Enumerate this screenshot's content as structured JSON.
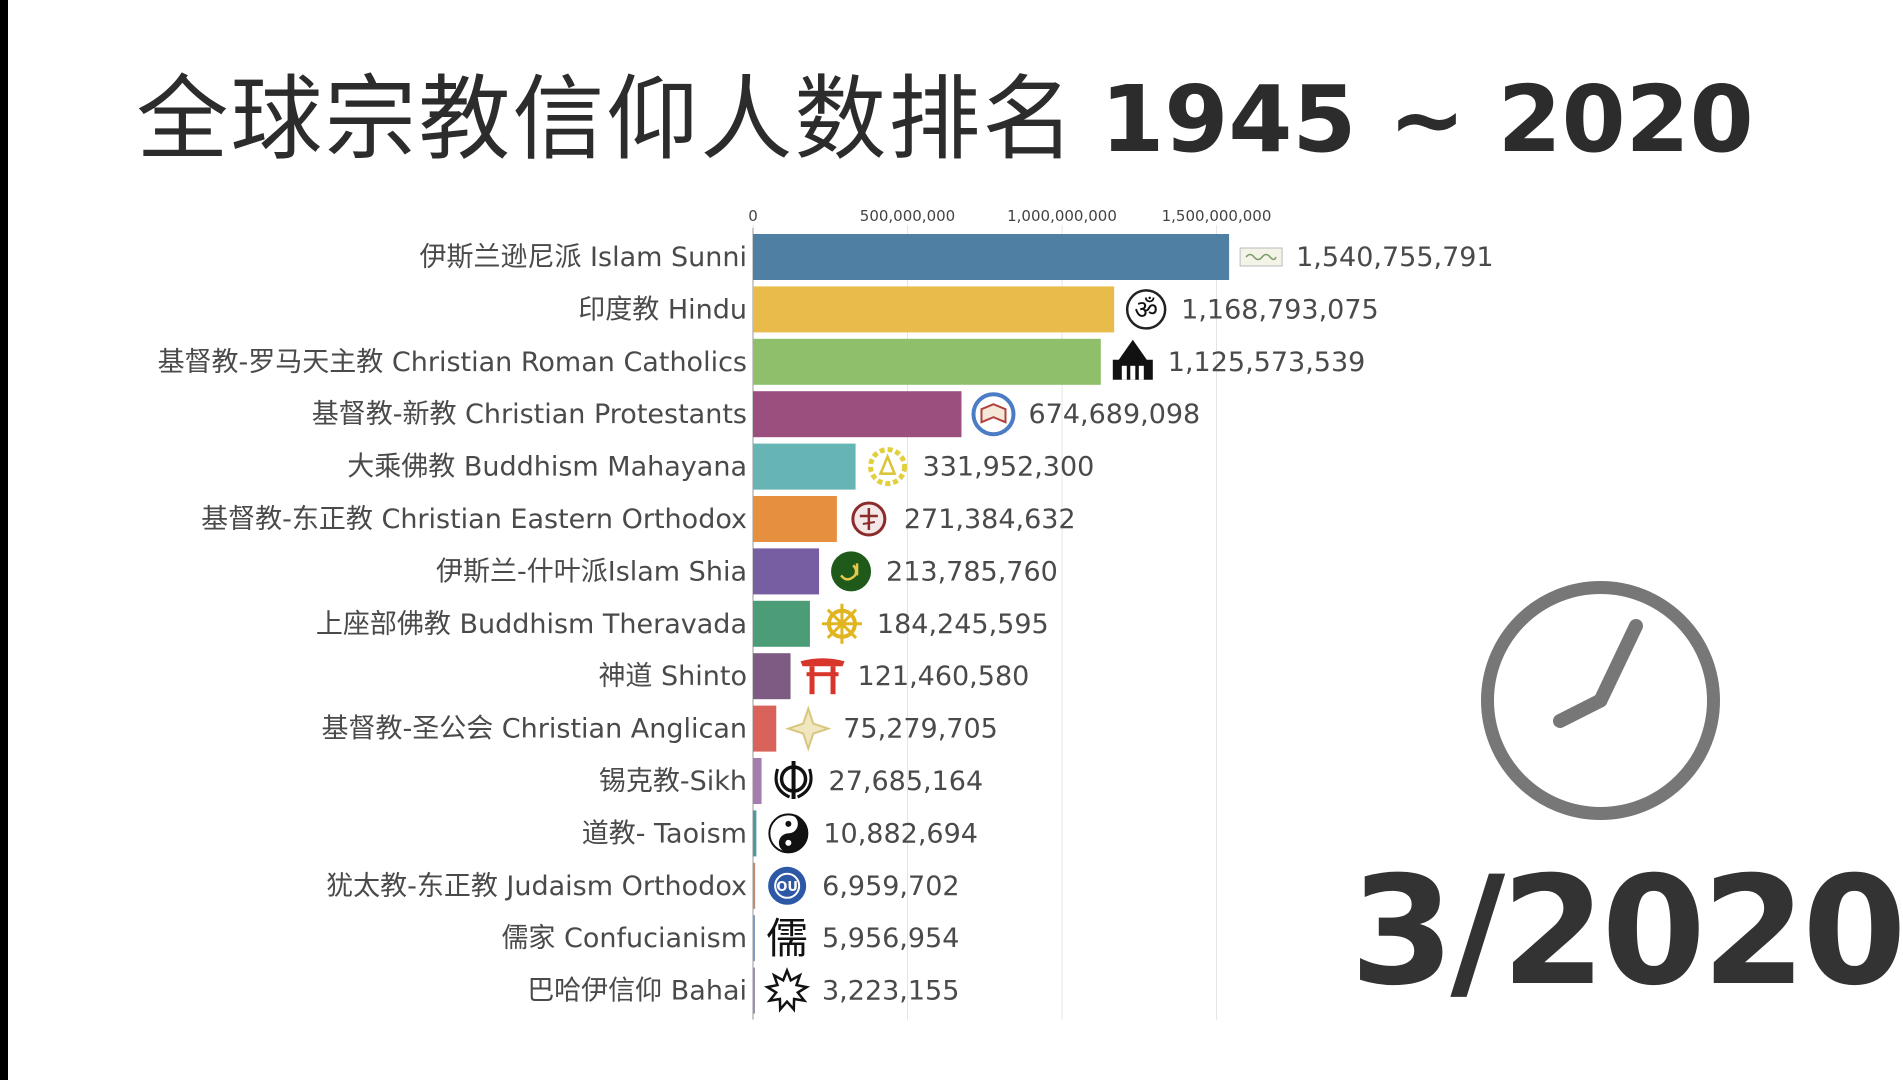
{
  "title": {
    "chinese": "全球宗教信仰人数排名",
    "years": "1945 ~ 2020"
  },
  "date_label": "3/2020",
  "chart_data": {
    "type": "bar",
    "orientation": "horizontal",
    "title": "全球宗教信仰人数排名 1945 ~ 2020",
    "xlim": [
      0,
      2000000000
    ],
    "x_ticks": [
      0,
      500000000,
      1000000000,
      1500000000
    ],
    "x_tick_labels": [
      "0",
      "500,000,000",
      "1,000,000,000",
      "1,500,000,000"
    ],
    "grid": true,
    "categories": [
      "伊斯兰逊尼派 Islam Sunni",
      "印度教 Hindu",
      "基督教-罗马天主教 Christian Roman Catholics",
      "基督教-新教 Christian Protestants",
      "大乘佛教 Buddhism Mahayana",
      "基督教-东正教 Christian Eastern Orthodox",
      "伊斯兰-什叶派Islam Shia",
      "上座部佛教 Buddhism Theravada",
      "神道 Shinto",
      "基督教-圣公会 Christian Anglican",
      "锡克教-Sikh",
      "道教- Taoism",
      "犹太教-东正教 Judaism Orthodox",
      "儒家 Confucianism",
      "巴哈伊信仰 Bahai"
    ],
    "values": [
      1540755791,
      1168793075,
      1125573539,
      674689098,
      331952300,
      271384632,
      213785760,
      184245595,
      121460580,
      75279705,
      27685164,
      10882694,
      6959702,
      5956954,
      3223155
    ],
    "value_labels": [
      "1,540,755,791",
      "1,168,793,075",
      "1,125,573,539",
      "674,689,098",
      "331,952,300",
      "271,384,632",
      "213,785,760",
      "184,245,595",
      "121,460,580",
      "75,279,705",
      "27,685,164",
      "10,882,694",
      "6,959,702",
      "5,956,954",
      "3,223,155"
    ],
    "colors": [
      "#4f7fa3",
      "#e8bb4b",
      "#8fbf6a",
      "#9b4f7f",
      "#66b4b3",
      "#e58f3f",
      "#775ea3",
      "#4d9c78",
      "#7d5b82",
      "#d9635a",
      "#a57cb0",
      "#4f9aa0",
      "#c28a73",
      "#7e9fc0",
      "#9c8fb0"
    ],
    "icons": [
      "islam-banner-icon",
      "om-icon",
      "church-icon",
      "protestant-bible-icon",
      "dharma-lotus-icon",
      "orthodox-cross-icon",
      "shia-ali-icon",
      "dharma-wheel-icon",
      "torii-icon",
      "anglican-cross-icon",
      "khanda-icon",
      "yin-yang-icon",
      "ou-seal-icon",
      "ru-character-icon",
      "bahai-star-icon"
    ]
  }
}
